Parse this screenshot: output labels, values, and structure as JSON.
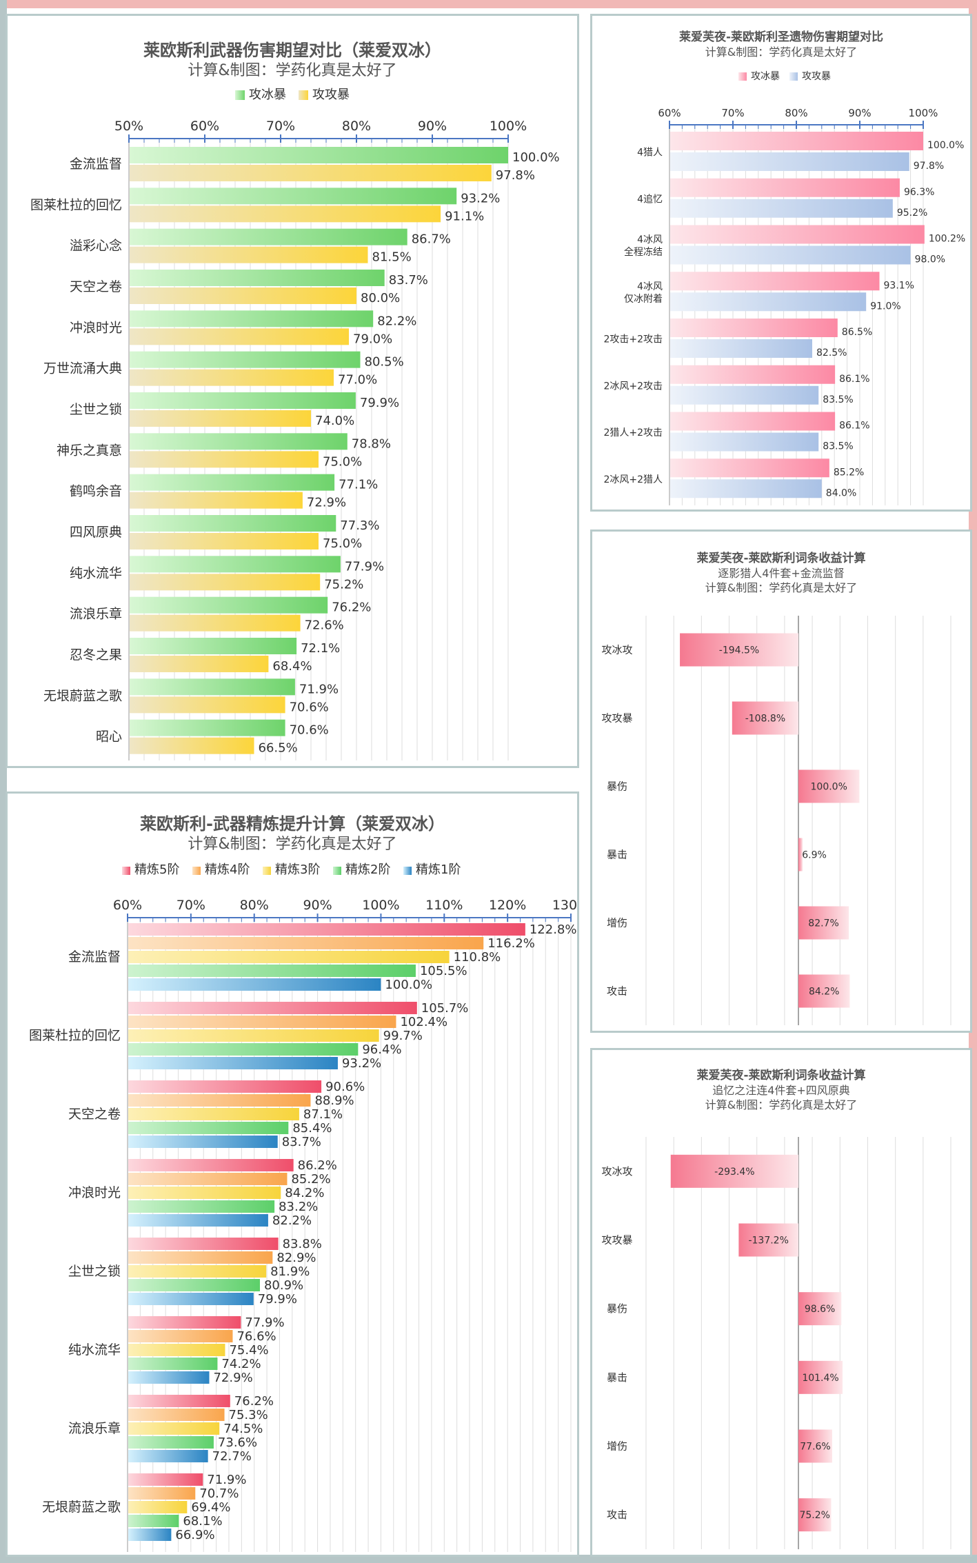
{
  "colors": {
    "frame": "#b9cbcb",
    "accent_pink": "#f1b8b6",
    "accent_gray": "#b6c6c7",
    "axis": "#4a76c2",
    "grid": "#dddddd",
    "text": "#333333",
    "title": "#555555",
    "ice_end": "#6ed36b",
    "ice_start": "#d8f7d4",
    "atk_end": "#fcd53a",
    "atk_start": "#efe6c6",
    "r5_end": "#ef4e6a",
    "r5_start": "#fdd8de",
    "r4_end": "#f9a54c",
    "r4_start": "#fde3c4",
    "r3_end": "#f7d43b",
    "r3_start": "#fdf0b7",
    "r2_end": "#5ccf69",
    "r2_start": "#cdf3cf",
    "r1_end": "#2b84c3",
    "r1_start": "#d5f1fd",
    "artifact_ice_end": "#fc89a4",
    "artifact_ice_start": "#fde6ea",
    "artifact_atk_end": "#a9c1e5",
    "artifact_atk_start": "#eef3fa",
    "neg_bar_end": "#f57990",
    "neg_bar_start": "#fde7ea"
  },
  "chart_data": [
    {
      "id": "weapon",
      "type": "bar",
      "orientation": "horizontal",
      "title": "莱欧斯利武器伤害期望对比（莱爱双冰）",
      "subtitle": "计算&制图：学药化真是太好了",
      "xlim": [
        50,
        100
      ],
      "ticks": [
        "50%",
        "60%",
        "70%",
        "80%",
        "90%",
        "100%"
      ],
      "tick_values": [
        50,
        60,
        70,
        80,
        90,
        100
      ],
      "legend": [
        "攻冰暴",
        "攻攻暴"
      ],
      "categories": [
        "金流监督",
        "图莱杜拉的回忆",
        "溢彩心念",
        "天空之卷",
        "冲浪时光",
        "万世流涌大典",
        "尘世之锁",
        "神乐之真意",
        "鹤鸣余音",
        "四风原典",
        "纯水流华",
        "流浪乐章",
        "忍冬之果",
        "无垠蔚蓝之歌",
        "昭心"
      ],
      "series": [
        {
          "name": "攻冰暴",
          "values": [
            100.0,
            93.2,
            86.7,
            83.7,
            82.2,
            80.5,
            79.9,
            78.8,
            77.1,
            77.3,
            77.9,
            76.2,
            72.1,
            71.9,
            70.6
          ],
          "labels": [
            "100.0%",
            "93.2%",
            "86.7%",
            "83.7%",
            "82.2%",
            "80.5%",
            "79.9%",
            "78.8%",
            "77.1%",
            "77.3%",
            "77.9%",
            "76.2%",
            "72.1%",
            "71.9%",
            "70.6%"
          ]
        },
        {
          "name": "攻攻暴",
          "values": [
            97.8,
            91.1,
            81.5,
            80.0,
            79.0,
            77.0,
            74.0,
            75.0,
            72.9,
            75.0,
            75.2,
            72.6,
            68.4,
            70.6,
            66.5
          ],
          "labels": [
            "97.8%",
            "91.1%",
            "81.5%",
            "80.0%",
            "79.0%",
            "77.0%",
            "74.0%",
            "75.0%",
            "72.9%",
            "75.0%",
            "75.2%",
            "72.6%",
            "68.4%",
            "70.6%",
            "66.5%"
          ]
        }
      ]
    },
    {
      "id": "artifact",
      "type": "bar",
      "orientation": "horizontal",
      "title": "莱爱芙夜-莱欧斯利圣遗物伤害期望对比",
      "subtitle": "计算&制图：学药化真是太好了",
      "xlim": [
        60,
        100
      ],
      "ticks": [
        "60%",
        "70%",
        "80%",
        "90%",
        "100%"
      ],
      "tick_values": [
        60,
        70,
        80,
        90,
        100
      ],
      "legend": [
        "攻冰暴",
        "攻攻暴"
      ],
      "categories": [
        [
          "4猎人"
        ],
        [
          "4追忆"
        ],
        [
          "4冰风",
          "全程冻结"
        ],
        [
          "4冰风",
          "仅冰附着"
        ],
        [
          "2攻击+2攻击"
        ],
        [
          "2冰风+2攻击"
        ],
        [
          "2猎人+2攻击"
        ],
        [
          "2冰风+2猎人"
        ]
      ],
      "series": [
        {
          "name": "攻冰暴",
          "values": [
            100.0,
            96.3,
            100.2,
            93.1,
            86.5,
            86.1,
            86.1,
            85.2
          ],
          "labels": [
            "100.0%",
            "96.3%",
            "100.2%",
            "93.1%",
            "86.5%",
            "86.1%",
            "86.1%",
            "85.2%"
          ]
        },
        {
          "name": "攻攻暴",
          "values": [
            97.8,
            95.2,
            98.0,
            91.0,
            82.5,
            83.5,
            83.5,
            84.0
          ],
          "labels": [
            "97.8%",
            "95.2%",
            "98.0%",
            "91.0%",
            "82.5%",
            "83.5%",
            "83.5%",
            "84.0%"
          ]
        }
      ]
    },
    {
      "id": "refine",
      "type": "bar",
      "orientation": "horizontal",
      "title": "莱欧斯利-武器精炼提升计算（莱爱双冰）",
      "subtitle": "计算&制图：学药化真是太好了",
      "xlim": [
        60,
        130
      ],
      "ticks": [
        "60%",
        "70%",
        "80%",
        "90%",
        "100%",
        "110%",
        "120%",
        "130%"
      ],
      "tick_values": [
        60,
        70,
        80,
        90,
        100,
        110,
        120,
        130
      ],
      "legend": [
        "精炼5阶",
        "精炼4阶",
        "精炼3阶",
        "精炼2阶",
        "精炼1阶"
      ],
      "categories": [
        "金流监督",
        "图莱杜拉的回忆",
        "天空之卷",
        "冲浪时光",
        "尘世之锁",
        "纯水流华",
        "流浪乐章",
        "无垠蔚蓝之歌"
      ],
      "series": [
        {
          "name": "精炼5阶",
          "values": [
            122.8,
            105.7,
            90.6,
            86.2,
            83.8,
            77.9,
            76.2,
            71.9
          ],
          "labels": [
            "122.8%",
            "105.7%",
            "90.6%",
            "86.2%",
            "83.8%",
            "77.9%",
            "76.2%",
            "71.9%"
          ]
        },
        {
          "name": "精炼4阶",
          "values": [
            116.2,
            102.4,
            88.9,
            85.2,
            82.9,
            76.6,
            75.3,
            70.7
          ],
          "labels": [
            "116.2%",
            "102.4%",
            "88.9%",
            "85.2%",
            "82.9%",
            "76.6%",
            "75.3%",
            "70.7%"
          ]
        },
        {
          "name": "精炼3阶",
          "values": [
            110.8,
            99.7,
            87.1,
            84.2,
            81.9,
            75.4,
            74.5,
            69.4
          ],
          "labels": [
            "110.8%",
            "99.7%",
            "87.1%",
            "84.2%",
            "81.9%",
            "75.4%",
            "74.5%",
            "69.4%"
          ]
        },
        {
          "name": "精炼2阶",
          "values": [
            105.5,
            96.4,
            85.4,
            83.2,
            80.9,
            74.2,
            73.6,
            68.1
          ],
          "labels": [
            "105.5%",
            "96.4%",
            "85.4%",
            "83.2%",
            "80.9%",
            "74.2%",
            "73.6%",
            "68.1%"
          ]
        },
        {
          "name": "精炼1阶",
          "values": [
            100.0,
            93.2,
            83.7,
            82.2,
            79.9,
            72.9,
            72.7,
            66.9
          ],
          "labels": [
            "100.0%",
            "93.2%",
            "83.7%",
            "82.2%",
            "79.9%",
            "72.9%",
            "72.7%",
            "66.9%"
          ]
        }
      ]
    },
    {
      "id": "gain1",
      "type": "bar",
      "orientation": "horizontal",
      "title": "莱爱芙夜-莱欧斯利词条收益计算",
      "subtitle_lines": [
        "逐影猎人4件套+金流监督",
        "计算&制图：学药化真是太好了"
      ],
      "xlim": [
        -250,
        250
      ],
      "categories": [
        "攻冰攻",
        "攻攻暴",
        "暴伤",
        "暴击",
        "增伤",
        "攻击"
      ],
      "series": [
        {
          "name": "收益",
          "values": [
            -194.5,
            -108.8,
            100.0,
            6.9,
            82.7,
            84.2
          ],
          "labels": [
            "-194.5%",
            "-108.8%",
            "100.0%",
            "6.9%",
            "82.7%",
            "84.2%"
          ]
        }
      ]
    },
    {
      "id": "gain2",
      "type": "bar",
      "orientation": "horizontal",
      "title": "莱爱芙夜-莱欧斯利词条收益计算",
      "subtitle_lines": [
        "追忆之注连4件套+四风原典",
        "计算&制图：学药化真是太好了"
      ],
      "xlim": [
        -350,
        350
      ],
      "categories": [
        "攻冰攻",
        "攻攻暴",
        "暴伤",
        "暴击",
        "增伤",
        "攻击"
      ],
      "series": [
        {
          "name": "收益",
          "values": [
            -293.4,
            -137.2,
            98.6,
            101.4,
            77.6,
            75.2
          ],
          "labels": [
            "-293.4%",
            "-137.2%",
            "98.6%",
            "101.4%",
            "77.6%",
            "75.2%"
          ]
        }
      ]
    }
  ]
}
